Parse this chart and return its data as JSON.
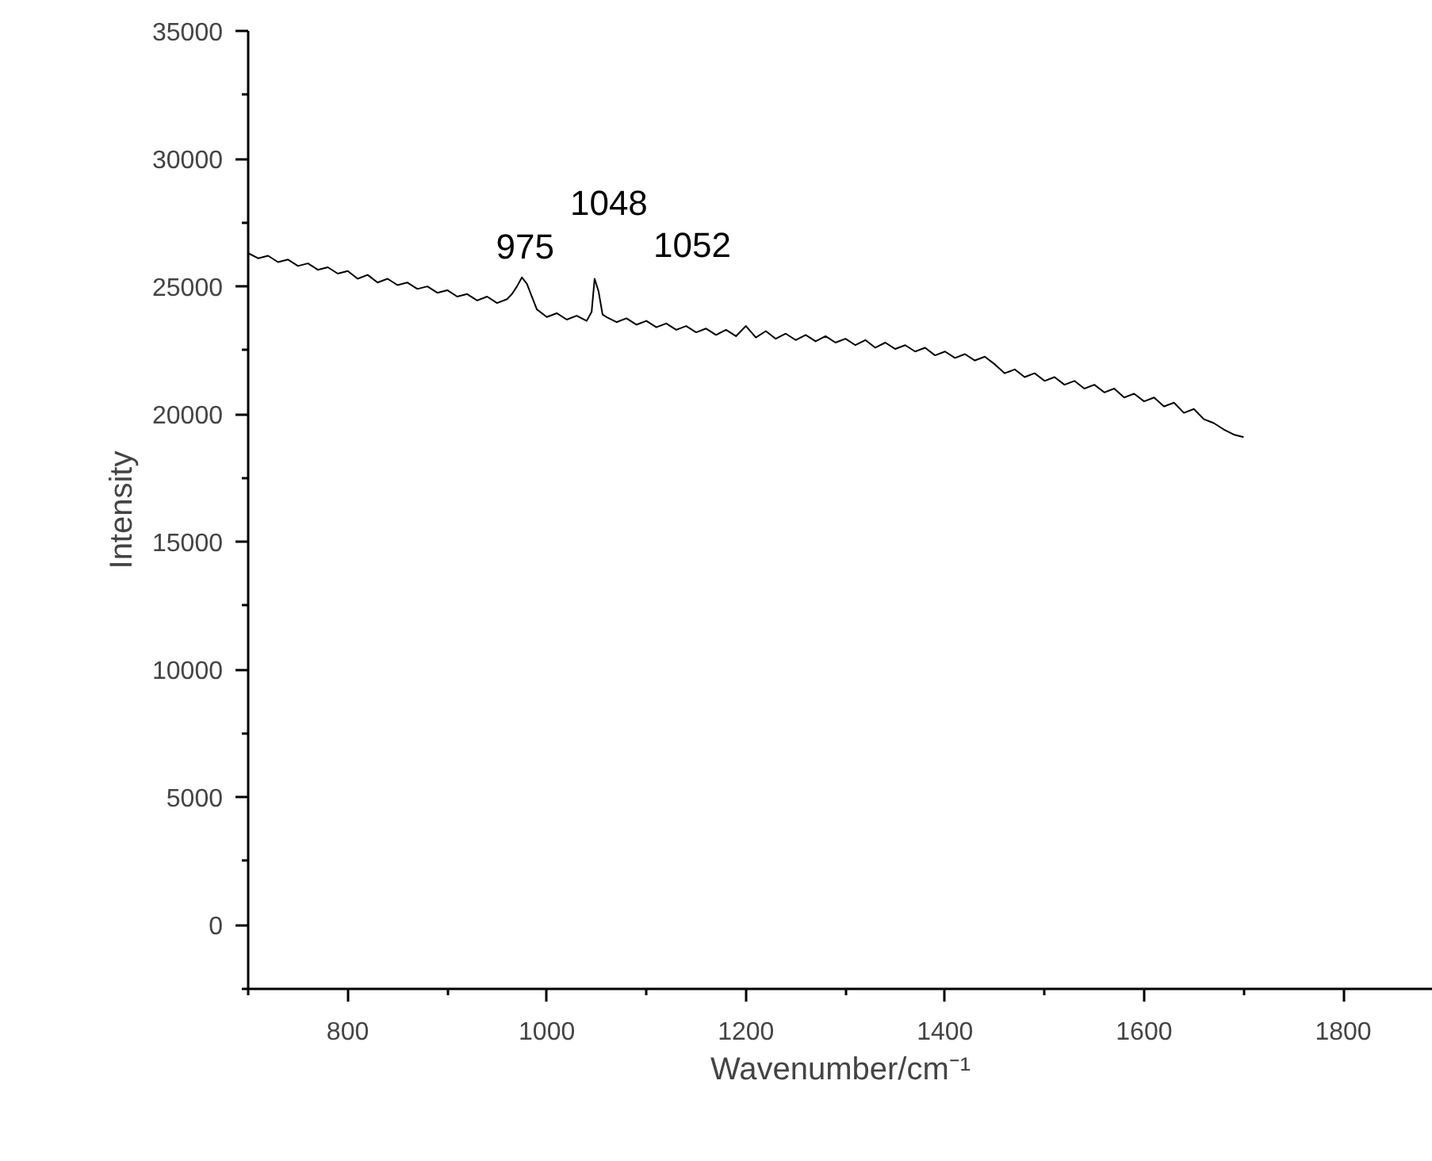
{
  "chart_data": {
    "type": "line",
    "xlabel": "Wavenumber/cm⁻¹",
    "ylabel": "Intensity",
    "xlim": [
      700,
      1890
    ],
    "ylim": [
      -2500,
      35000
    ],
    "xticks": [
      800,
      1000,
      1200,
      1400,
      1600,
      1800
    ],
    "yticks": [
      0,
      5000,
      10000,
      15000,
      20000,
      25000,
      30000,
      35000
    ],
    "grid": false,
    "marker": "none",
    "line_style": "solid",
    "annotations": [
      {
        "text": "975",
        "x": 975,
        "y": 25350
      },
      {
        "text": "1048",
        "x": 1048,
        "y": 25300
      },
      {
        "text": "1052",
        "x": 1052,
        "y": 24800
      }
    ],
    "series": [
      {
        "color": "#000000",
        "x": [
          700,
          710,
          720,
          730,
          740,
          750,
          760,
          770,
          780,
          790,
          800,
          810,
          820,
          830,
          840,
          850,
          860,
          870,
          880,
          890,
          900,
          910,
          920,
          930,
          940,
          950,
          960,
          965,
          970,
          975,
          980,
          985,
          990,
          1000,
          1010,
          1020,
          1030,
          1040,
          1045,
          1048,
          1052,
          1056,
          1060,
          1070,
          1080,
          1090,
          1100,
          1110,
          1120,
          1130,
          1140,
          1150,
          1160,
          1170,
          1180,
          1190,
          1200,
          1210,
          1220,
          1230,
          1240,
          1250,
          1260,
          1270,
          1280,
          1290,
          1300,
          1310,
          1320,
          1330,
          1340,
          1350,
          1360,
          1370,
          1380,
          1390,
          1400,
          1410,
          1420,
          1430,
          1440,
          1450,
          1460,
          1470,
          1480,
          1490,
          1500,
          1510,
          1520,
          1530,
          1540,
          1550,
          1560,
          1570,
          1580,
          1590,
          1600,
          1610,
          1620,
          1630,
          1640,
          1650,
          1660,
          1670,
          1680,
          1690,
          1700
        ],
        "values": [
          26300,
          26100,
          26200,
          25950,
          26050,
          25800,
          25900,
          25650,
          25750,
          25500,
          25600,
          25300,
          25450,
          25150,
          25300,
          25050,
          25150,
          24900,
          25000,
          24750,
          24850,
          24600,
          24700,
          24450,
          24600,
          24350,
          24500,
          24700,
          25000,
          25350,
          25100,
          24600,
          24100,
          23800,
          23950,
          23700,
          23850,
          23650,
          24000,
          25300,
          24800,
          23900,
          23800,
          23600,
          23750,
          23500,
          23650,
          23400,
          23550,
          23300,
          23450,
          23200,
          23350,
          23100,
          23300,
          23050,
          23450,
          23000,
          23250,
          22950,
          23150,
          22900,
          23100,
          22850,
          23050,
          22800,
          22950,
          22700,
          22900,
          22600,
          22800,
          22550,
          22700,
          22450,
          22600,
          22300,
          22450,
          22200,
          22350,
          22100,
          22250,
          21950,
          21600,
          21750,
          21450,
          21600,
          21300,
          21450,
          21150,
          21300,
          21000,
          21150,
          20850,
          21000,
          20650,
          20800,
          20500,
          20650,
          20300,
          20450,
          20050,
          20200,
          19800,
          19650,
          19400,
          19200,
          19100
        ]
      }
    ]
  }
}
